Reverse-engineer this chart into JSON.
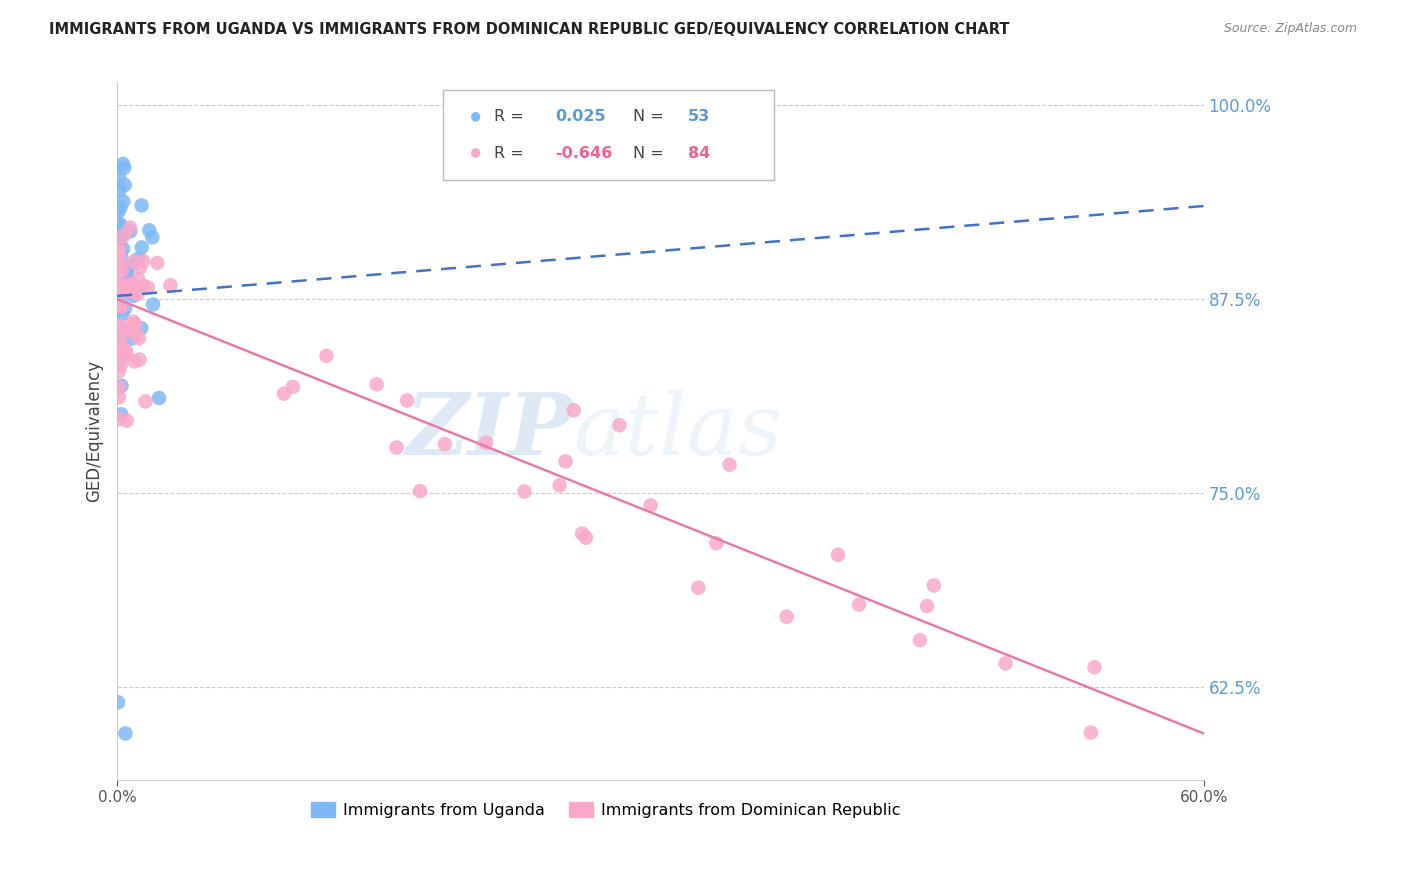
{
  "title": "IMMIGRANTS FROM UGANDA VS IMMIGRANTS FROM DOMINICAN REPUBLIC GED/EQUIVALENCY CORRELATION CHART",
  "source": "Source: ZipAtlas.com",
  "ylabel": "GED/Equivalency",
  "xmin": 0.0,
  "xmax": 0.6,
  "ymin": 0.565,
  "ymax": 1.015,
  "r_uganda": 0.025,
  "n_uganda": 53,
  "r_dominican": -0.646,
  "n_dominican": 84,
  "uganda_color": "#7EB8F7",
  "dominican_color": "#F9A8C9",
  "trendline_uganda_color": "#4472C4",
  "trendline_dominican_color": "#E87BAA",
  "legend_uganda": "Immigrants from Uganda",
  "legend_dominican": "Immigrants from Dominican Republic",
  "watermark_zip": "ZIP",
  "watermark_atlas": "atlas",
  "yticks": [
    0.625,
    0.75,
    0.875,
    1.0
  ],
  "ytick_labels": [
    "62.5%",
    "75.0%",
    "87.5%",
    "100.0%"
  ],
  "xtick_labels": [
    "0.0%",
    "60.0%"
  ],
  "xticks": [
    0.0,
    0.6
  ]
}
